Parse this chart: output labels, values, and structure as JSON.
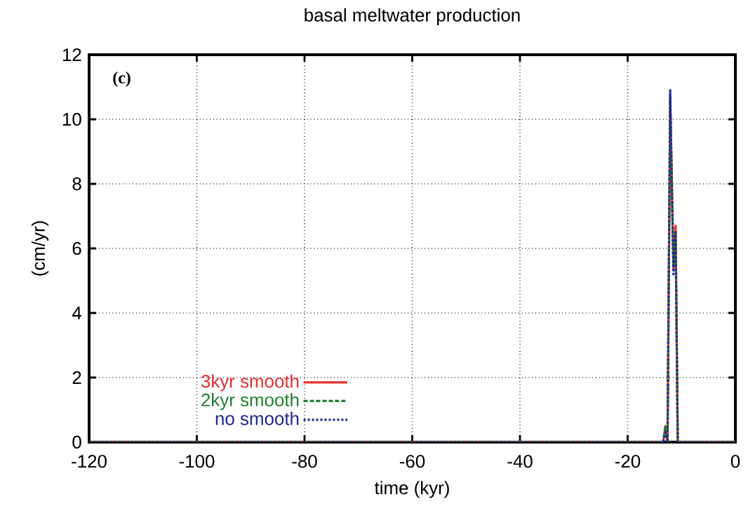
{
  "chart_data": {
    "type": "line",
    "title": "basal meltwater production",
    "xlabel": "time (kyr)",
    "ylabel": "(cm/yr)",
    "annotations": [
      "(c)"
    ],
    "xlim": [
      -120,
      0
    ],
    "ylim": [
      0,
      12
    ],
    "xticks": [
      -120,
      -100,
      -80,
      -60,
      -40,
      -20,
      0
    ],
    "yticks": [
      0,
      2,
      4,
      6,
      8,
      10,
      12
    ],
    "grid": true,
    "legend": "bottom left",
    "marker": "none",
    "series": [
      {
        "name": "3kyr smooth",
        "color": "#e03030",
        "line_style": "solid",
        "x": [
          -120,
          -13.4,
          -13.0,
          -12.6,
          -12.1,
          -11.5,
          -11.1,
          -10.7,
          0
        ],
        "values": [
          0,
          0,
          0.5,
          0,
          10.6,
          5.4,
          6.7,
          0,
          0
        ]
      },
      {
        "name": "2kyr smooth",
        "color": "#208030",
        "line_style": "dashed",
        "x": [
          -120,
          -13.4,
          -13.0,
          -12.6,
          -12.1,
          -11.5,
          -11.1,
          -10.7,
          0
        ],
        "values": [
          0,
          0,
          0.5,
          0,
          10.7,
          5.5,
          6.5,
          0,
          0
        ]
      },
      {
        "name": "no smooth",
        "color": "#202890",
        "line_style": "dotted",
        "x": [
          -120,
          -13.4,
          -13.0,
          -12.6,
          -12.1,
          -11.5,
          -11.1,
          -10.7,
          0
        ],
        "values": [
          0,
          0,
          0.3,
          0,
          10.9,
          5.2,
          6.5,
          0,
          0
        ]
      }
    ]
  }
}
